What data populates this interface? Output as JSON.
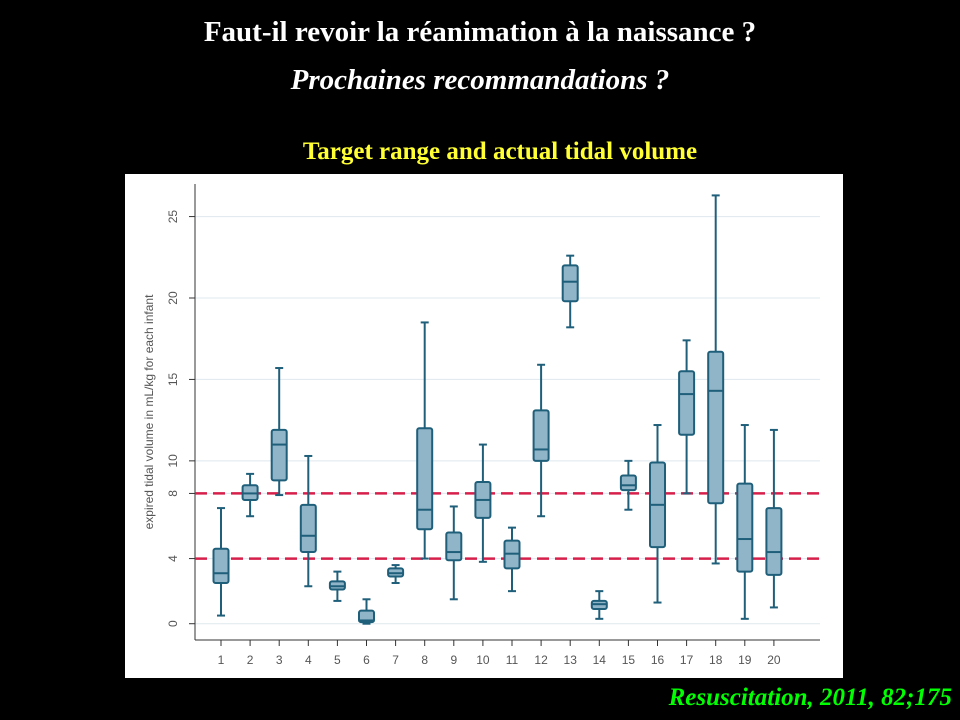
{
  "slide": {
    "title": "Faut-il revoir la réanimation à la naissance ?",
    "subtitle": "Prochaines recommandations ?",
    "chart_heading": "Target range and actual tidal volume",
    "citation": "Resuscitation, 2011, 82;175"
  },
  "colors": {
    "background": "#000000",
    "title": "#ffffff",
    "chart_heading": "#ffff33",
    "citation": "#00ff00",
    "box_fill": "#90b4c8",
    "box_stroke": "#1f5f7a",
    "reference_line": "#d6204b"
  },
  "chart_data": {
    "type": "box",
    "xlabel": "",
    "ylabel": "expired tidal volume in mL/kg for each infant",
    "ylim": [
      -1,
      27
    ],
    "yticks": [
      0,
      4,
      8,
      10,
      15,
      20,
      25
    ],
    "grid": true,
    "reference_lines": [
      4,
      8
    ],
    "categories": [
      "1",
      "2",
      "3",
      "4",
      "5",
      "6",
      "7",
      "8",
      "9",
      "10",
      "11",
      "12",
      "13",
      "14",
      "15",
      "16",
      "17",
      "18",
      "19",
      "20"
    ],
    "boxes": [
      {
        "min": 0.5,
        "q1": 2.5,
        "median": 3.1,
        "q3": 4.6,
        "max": 7.1
      },
      {
        "min": 6.6,
        "q1": 7.6,
        "median": 8.0,
        "q3": 8.5,
        "max": 9.2
      },
      {
        "min": 7.9,
        "q1": 8.8,
        "median": 11.0,
        "q3": 11.9,
        "max": 15.7
      },
      {
        "min": 2.3,
        "q1": 4.4,
        "median": 5.4,
        "q3": 7.3,
        "max": 10.3
      },
      {
        "min": 1.4,
        "q1": 2.1,
        "median": 2.3,
        "q3": 2.6,
        "max": 3.2
      },
      {
        "min": 0.0,
        "q1": 0.1,
        "median": 0.2,
        "q3": 0.8,
        "max": 1.5
      },
      {
        "min": 2.5,
        "q1": 2.9,
        "median": 3.1,
        "q3": 3.4,
        "max": 3.6
      },
      {
        "min": 4.0,
        "q1": 5.8,
        "median": 7.0,
        "q3": 12.0,
        "max": 18.5
      },
      {
        "min": 1.5,
        "q1": 3.9,
        "median": 4.4,
        "q3": 5.6,
        "max": 7.2
      },
      {
        "min": 3.8,
        "q1": 6.5,
        "median": 7.6,
        "q3": 8.7,
        "max": 11.0
      },
      {
        "min": 2.0,
        "q1": 3.4,
        "median": 4.3,
        "q3": 5.1,
        "max": 5.9
      },
      {
        "min": 6.6,
        "q1": 10.0,
        "median": 10.7,
        "q3": 13.1,
        "max": 15.9
      },
      {
        "min": 18.2,
        "q1": 19.8,
        "median": 21.0,
        "q3": 22.0,
        "max": 22.6
      },
      {
        "min": 0.3,
        "q1": 0.9,
        "median": 1.2,
        "q3": 1.4,
        "max": 2.0
      },
      {
        "min": 7.0,
        "q1": 8.2,
        "median": 8.5,
        "q3": 9.1,
        "max": 10.0
      },
      {
        "min": 1.3,
        "q1": 4.7,
        "median": 7.3,
        "q3": 9.9,
        "max": 12.2
      },
      {
        "min": 8.0,
        "q1": 11.6,
        "median": 14.1,
        "q3": 15.5,
        "max": 17.4
      },
      {
        "min": 3.7,
        "q1": 7.4,
        "median": 14.3,
        "q3": 16.7,
        "max": 26.3
      },
      {
        "min": 0.3,
        "q1": 3.2,
        "median": 5.2,
        "q3": 8.6,
        "max": 12.2
      },
      {
        "min": 1.0,
        "q1": 3.0,
        "median": 4.4,
        "q3": 7.1,
        "max": 11.9
      }
    ]
  }
}
